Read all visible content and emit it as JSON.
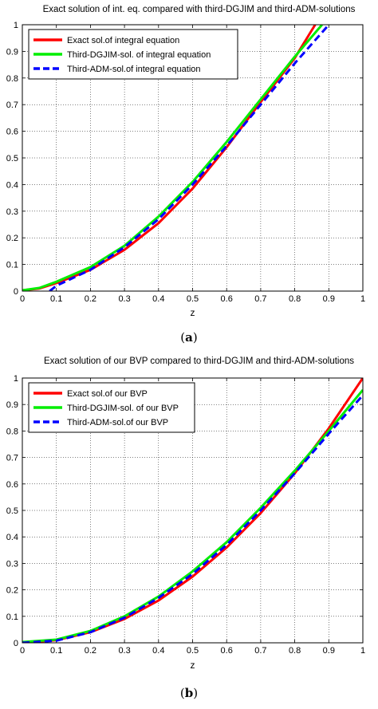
{
  "chart_data": [
    {
      "type": "line",
      "title": "Exact solution of int. eq. compared with third-DGJIM and third-ADM-solutions",
      "xlabel": "z",
      "ylabel": "",
      "xlim": [
        0,
        1
      ],
      "ylim": [
        0,
        1
      ],
      "xticks": [
        "0",
        "0.1",
        "0.2",
        "0.3",
        "0.4",
        "0.5",
        "0.6",
        "0.7",
        "0.8",
        "0.9",
        "1"
      ],
      "yticks": [
        "0",
        "0.1",
        "0.2",
        "0.3",
        "0.4",
        "0.5",
        "0.6",
        "0.7",
        "0.8",
        "0.9",
        "1"
      ],
      "grid": true,
      "legend_position": "top-left",
      "series": [
        {
          "name": "Exact sol.of integral equation",
          "color": "#ff0000",
          "style": "solid",
          "x": [
            0,
            0.05,
            0.1,
            0.2,
            0.3,
            0.4,
            0.5,
            0.6,
            0.7,
            0.8,
            0.86
          ],
          "y": [
            0.003,
            0.01,
            0.03,
            0.08,
            0.155,
            0.255,
            0.385,
            0.54,
            0.71,
            0.875,
            1.0
          ]
        },
        {
          "name": "Third-DGJIM-sol. of integral equation",
          "color": "#00ee00",
          "style": "solid",
          "x": [
            0,
            0.05,
            0.1,
            0.2,
            0.3,
            0.4,
            0.5,
            0.6,
            0.7,
            0.8,
            0.88
          ],
          "y": [
            0.003,
            0.012,
            0.035,
            0.09,
            0.17,
            0.28,
            0.41,
            0.56,
            0.72,
            0.88,
            1.0
          ]
        },
        {
          "name": "Third-ADM-sol.of integral equation",
          "color": "#0000ff",
          "style": "dashed",
          "x": [
            0.08,
            0.1,
            0.2,
            0.3,
            0.4,
            0.5,
            0.6,
            0.7,
            0.8,
            0.9
          ],
          "y": [
            0.0,
            0.02,
            0.08,
            0.165,
            0.27,
            0.4,
            0.545,
            0.7,
            0.855,
            1.0
          ]
        }
      ]
    },
    {
      "type": "line",
      "title": "Exact solution of our BVP compared to third-DGJIM and third-ADM-solutions",
      "xlabel": "z",
      "ylabel": "",
      "xlim": [
        0,
        1
      ],
      "ylim": [
        0,
        1
      ],
      "xticks": [
        "0",
        "0.1",
        "0.2",
        "0.3",
        "0.4",
        "0.5",
        "0.6",
        "0.7",
        "0.8",
        "0.9",
        "1"
      ],
      "yticks": [
        "0",
        "0.1",
        "0.2",
        "0.3",
        "0.4",
        "0.5",
        "0.6",
        "0.7",
        "0.8",
        "0.9",
        "1"
      ],
      "grid": true,
      "legend_position": "top-left",
      "series": [
        {
          "name": "Exact sol.of our BVP",
          "color": "#ff0000",
          "style": "solid",
          "x": [
            0,
            0.1,
            0.2,
            0.3,
            0.4,
            0.5,
            0.6,
            0.7,
            0.8,
            0.9,
            1.0
          ],
          "y": [
            0.0,
            0.01,
            0.04,
            0.09,
            0.16,
            0.25,
            0.36,
            0.49,
            0.64,
            0.81,
            1.0
          ]
        },
        {
          "name": "Third-DGJIM-sol. of our BVP",
          "color": "#00ee00",
          "style": "solid",
          "x": [
            0,
            0.1,
            0.2,
            0.3,
            0.4,
            0.5,
            0.6,
            0.7,
            0.8,
            0.9,
            1.0
          ],
          "y": [
            0.003,
            0.012,
            0.045,
            0.1,
            0.175,
            0.27,
            0.38,
            0.51,
            0.65,
            0.8,
            0.955
          ]
        },
        {
          "name": "Third-ADM-sol.of our BVP",
          "color": "#0000ff",
          "style": "dashed",
          "x": [
            0,
            0.1,
            0.2,
            0.3,
            0.4,
            0.5,
            0.6,
            0.7,
            0.8,
            0.9,
            1.0
          ],
          "y": [
            0.0,
            0.008,
            0.04,
            0.095,
            0.17,
            0.26,
            0.37,
            0.5,
            0.64,
            0.79,
            0.935
          ]
        }
      ]
    }
  ],
  "captions": [
    {
      "letter": "a"
    },
    {
      "letter": "b"
    }
  ]
}
